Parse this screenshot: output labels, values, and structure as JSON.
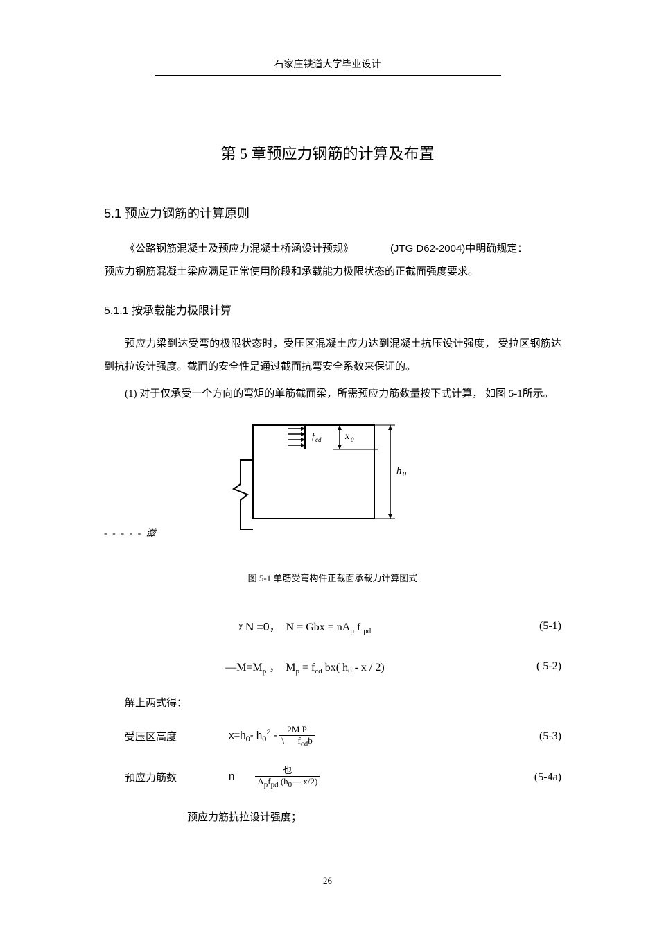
{
  "header": {
    "institution": "石家庄铁道大学毕业设计"
  },
  "chapter": {
    "title": "第 5 章预应力钢筋的计算及布置"
  },
  "section_5_1": {
    "title": "5.1 预应力钢筋的计算原则",
    "para1_a": "《公路钢筋混凝土及预应力混凝土桥涵设计预规》",
    "para1_b": "(JTG  D62-2004)中明确规定：",
    "para2": "预应力钢筋混凝土梁应满足正常使用阶段和承载能力极限状态的正截面强度要求。"
  },
  "subsection_5_1_1": {
    "title": "5.1.1 按承载能力极限计算",
    "para1": "预应力梁到达受弯的极限状态时，受压区混凝土应力达到混凝土抗压设计强度，  受拉区钢筋达到抗拉设计强度。截面的安全性是通过截面抗弯安全系数来保证的。",
    "para2": "(1) 对于仅承受一个方向的弯矩的单筋截面梁，所需预应力筋数量按下式计算，  如图 5-1所示。"
  },
  "figure": {
    "side_text": "- - - - -   滋",
    "caption": "图 5-1 单筋受弯构件正截面承载力计算图式",
    "label_fcd": "fcd",
    "label_x0": "x₀",
    "label_h0": "h₀"
  },
  "equations": {
    "eq1": {
      "body_html": "<span class='sans'>ʸ N =0</span>，&nbsp;&nbsp;<span class='serif'>N = Gbx = nA<sub>p</sub> f <sub>pd</sub></span>",
      "num": "(5-1)"
    },
    "eq2": {
      "body_html": "<span class='serif'>—M=M<sub>p</sub></span> ，&nbsp;&nbsp;<span class='serif'>M<sub>p</sub> =  f<sub>cd</sub> bx(  h<sub>0</sub> -  x  /  2)</span>",
      "num": "( 5-2)"
    },
    "solve_text": "解上两式得：",
    "eq3": {
      "label": "受压区高度",
      "body_html": "<span class='sans'>x=h<sub>0</sub>- h<sub>0</sub><sup>2</sup> -</span> <span class='frac'><span class='frac-top'>2M P</span><span class='frac-bot'>\\ &nbsp;&nbsp;&nbsp;&nbsp; f<sub>cd</sub>b</span></span>",
      "num": "(5-3)"
    },
    "eq4": {
      "label": "预应力筋数",
      "body_html": "<span class='sans'>n</span>&nbsp;&nbsp;&nbsp;&nbsp;&nbsp;&nbsp;&nbsp;&nbsp;<span class='frac'><span class='frac-top'>也</span><span class='frac-bot'>A<sub>p</sub>f<sub>pd</sub> (h<sub>0</sub>— x/2)</span></span>",
      "num": "(5-4a)"
    },
    "def1": "预应力筋抗拉设计强度；"
  },
  "page_number": "26",
  "colors": {
    "text": "#000000",
    "background": "#ffffff",
    "line": "#000000"
  }
}
